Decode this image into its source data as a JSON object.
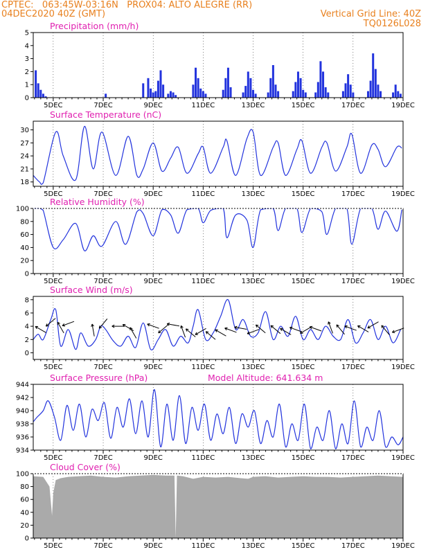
{
  "header": {
    "line1_left": "CPTEC:   063:45W-03:16N   PROX04: ALTO ALEGRE (RR)",
    "line2_left": "04DEC2020 40Z (GMT)",
    "line2_right": "Vertical Grid Line: 40Z",
    "line3_right": "TQ0126L028"
  },
  "colors": {
    "header": "#e8801e",
    "title": "#e020b0",
    "line": "#2233dd",
    "cloud": "#aaaaaa"
  },
  "chart_data": [
    {
      "type": "bar",
      "title": "Precipitation  (mm/h)",
      "ylim": [
        0,
        5
      ],
      "yticks": [
        "0",
        "1",
        "2",
        "3",
        "4",
        "5"
      ],
      "xticks": [
        "5DEC",
        "7DEC",
        "9DEC",
        "11DEC",
        "13DEC",
        "15DEC",
        "17DEC",
        "19DEC"
      ],
      "days": [
        4.2,
        19.0
      ],
      "x": [
        4.3,
        4.4,
        4.5,
        4.6,
        4.7,
        7.1,
        8.6,
        8.8,
        8.9,
        9.0,
        9.1,
        9.2,
        9.3,
        9.4,
        9.6,
        9.7,
        9.8,
        9.9,
        10.6,
        10.7,
        10.8,
        10.9,
        11.0,
        11.1,
        11.8,
        11.9,
        12.0,
        12.1,
        12.6,
        12.7,
        12.8,
        12.9,
        13.0,
        13.1,
        13.6,
        13.7,
        13.8,
        13.9,
        14.0,
        14.6,
        14.7,
        14.8,
        14.9,
        15.0,
        15.1,
        15.5,
        15.6,
        15.7,
        15.8,
        15.9,
        16.0,
        16.6,
        16.7,
        16.8,
        16.9,
        17.0,
        17.6,
        17.7,
        17.8,
        17.9,
        18.0,
        18.1,
        18.6,
        18.7,
        18.8,
        18.9
      ],
      "values": [
        2.1,
        1.1,
        0.6,
        0.3,
        0.1,
        0.3,
        1.1,
        1.5,
        0.7,
        0.4,
        0.5,
        1.3,
        2.1,
        1.0,
        0.3,
        0.5,
        0.4,
        0.2,
        1.0,
        2.3,
        1.5,
        0.7,
        0.5,
        0.3,
        0.6,
        1.5,
        2.3,
        0.8,
        0.4,
        0.9,
        2.0,
        1.5,
        0.6,
        0.3,
        0.4,
        1.5,
        2.5,
        1.0,
        0.5,
        0.5,
        1.2,
        2.0,
        1.5,
        0.6,
        0.4,
        0.4,
        1.2,
        2.8,
        2.0,
        0.8,
        0.4,
        0.5,
        1.1,
        1.8,
        1.0,
        0.4,
        0.5,
        1.3,
        3.4,
        2.2,
        1.0,
        0.5,
        0.4,
        1.0,
        0.5,
        0.3
      ]
    },
    {
      "type": "line",
      "title": "Surface Temperature (nC)",
      "ylim": [
        17,
        32
      ],
      "yticks": [
        "18",
        "21",
        "24",
        "27",
        "30"
      ],
      "xticks": [
        "5DEC",
        "7DEC",
        "9DEC",
        "11DEC",
        "13DEC",
        "15DEC",
        "17DEC",
        "19DEC"
      ],
      "days": [
        4.2,
        19.0
      ],
      "x": [
        4.2,
        4.45,
        4.6,
        5.1,
        5.4,
        5.9,
        6.25,
        6.6,
        6.95,
        7.5,
        8.0,
        8.35,
        8.6,
        9.0,
        9.35,
        9.7,
        10.0,
        10.35,
        10.8,
        11.0,
        11.3,
        11.8,
        11.95,
        12.3,
        12.75,
        13.0,
        13.3,
        13.8,
        14.0,
        14.3,
        14.75,
        14.95,
        15.3,
        15.75,
        15.95,
        16.3,
        16.75,
        16.95,
        17.3,
        17.75,
        18.0,
        18.3,
        18.75,
        18.95
      ],
      "values": [
        19.5,
        18.0,
        17.8,
        29.5,
        24.0,
        18.5,
        30.8,
        21.0,
        29.5,
        19.5,
        28.5,
        19.5,
        21.0,
        27.0,
        20.5,
        23.5,
        26.0,
        20.0,
        24.5,
        26.0,
        20.0,
        26.0,
        27.5,
        19.5,
        28.0,
        29.5,
        19.5,
        26.0,
        27.0,
        19.5,
        25.5,
        27.5,
        20.0,
        26.0,
        27.0,
        20.5,
        26.0,
        29.0,
        20.0,
        26.5,
        25.5,
        21.5,
        26.0,
        25.8
      ]
    },
    {
      "type": "line",
      "title": "Relative Humidity (%)",
      "ylim": [
        0,
        100
      ],
      "yticks": [
        "0",
        "20",
        "40",
        "60",
        "80",
        "100"
      ],
      "xticks": [
        "5DEC",
        "7DEC",
        "9DEC",
        "11DEC",
        "13DEC",
        "15DEC",
        "17DEC",
        "19DEC"
      ],
      "days": [
        4.2,
        19.0
      ],
      "x": [
        4.2,
        4.45,
        4.6,
        5.0,
        5.4,
        5.9,
        6.25,
        6.6,
        6.95,
        7.5,
        7.9,
        8.35,
        8.6,
        9.0,
        9.35,
        9.7,
        10.0,
        10.35,
        10.8,
        11.0,
        11.3,
        11.8,
        11.95,
        12.3,
        12.75,
        13.0,
        13.3,
        13.8,
        14.0,
        14.3,
        14.75,
        14.95,
        15.3,
        15.75,
        15.95,
        16.3,
        16.75,
        16.95,
        17.3,
        17.75,
        18.0,
        18.3,
        18.75,
        18.95
      ],
      "values": [
        100,
        100,
        97,
        40,
        52,
        77,
        35,
        58,
        42,
        80,
        45,
        95,
        92,
        58,
        98,
        90,
        62,
        98,
        100,
        78,
        97,
        100,
        55,
        90,
        82,
        40,
        98,
        100,
        66,
        100,
        100,
        63,
        100,
        95,
        60,
        100,
        100,
        45,
        100,
        100,
        68,
        96,
        65,
        98
      ]
    },
    {
      "type": "line",
      "title": "Surface Wind (m/s)",
      "ylim": [
        -1,
        8.5
      ],
      "yticks": [
        "0",
        "2",
        "4",
        "6",
        "8"
      ],
      "xticks": [
        "5DEC",
        "7DEC",
        "9DEC",
        "11DEC",
        "13DEC",
        "15DEC",
        "17DEC",
        "19DEC"
      ],
      "days": [
        4.2,
        19.0
      ],
      "x": [
        4.2,
        4.4,
        4.6,
        4.9,
        5.1,
        5.3,
        5.6,
        5.9,
        6.1,
        6.4,
        6.7,
        6.9,
        7.1,
        7.4,
        7.7,
        8.0,
        8.3,
        8.6,
        8.9,
        9.2,
        9.5,
        9.8,
        10.1,
        10.4,
        10.6,
        10.8,
        11.1,
        11.4,
        11.7,
        12.0,
        12.3,
        12.6,
        12.9,
        13.2,
        13.5,
        13.8,
        14.1,
        14.4,
        14.7,
        15.0,
        15.3,
        15.6,
        15.9,
        16.2,
        16.5,
        16.8,
        17.1,
        17.4,
        17.7,
        18.0,
        18.3,
        18.6,
        18.9
      ],
      "values": [
        2.0,
        2.8,
        2.0,
        5.0,
        6.5,
        1.0,
        3.5,
        0.5,
        3.0,
        1.0,
        2.0,
        4.0,
        3.5,
        1.8,
        1.0,
        2.5,
        0.8,
        4.5,
        0.5,
        2.0,
        3.5,
        1.0,
        2.5,
        1.5,
        4.0,
        6.5,
        2.0,
        3.0,
        5.5,
        8.0,
        3.5,
        5.0,
        2.5,
        3.0,
        6.2,
        2.0,
        4.0,
        2.5,
        5.5,
        2.0,
        3.5,
        2.0,
        4.0,
        2.5,
        2.0,
        5.0,
        1.5,
        3.0,
        5.0,
        2.0,
        4.0,
        1.5,
        3.5
      ],
      "arrows": [
        [
          4.5,
          3.5,
          30
        ],
        [
          4.9,
          4.6,
          -40
        ],
        [
          5.3,
          3.8,
          60
        ],
        [
          5.6,
          4.4,
          -20
        ],
        [
          6.6,
          3.4,
          80
        ],
        [
          7.0,
          4.4,
          -50
        ],
        [
          7.6,
          4.0,
          0
        ],
        [
          8.0,
          3.8,
          30
        ],
        [
          8.2,
          3.0,
          60
        ],
        [
          9.0,
          4.0,
          20
        ],
        [
          9.4,
          3.6,
          -40
        ],
        [
          9.8,
          4.2,
          10
        ],
        [
          10.2,
          3.2,
          70
        ],
        [
          10.5,
          3.0,
          40
        ],
        [
          10.9,
          3.2,
          -30
        ],
        [
          11.3,
          2.6,
          40
        ],
        [
          11.7,
          3.0,
          30
        ],
        [
          12.1,
          3.4,
          20
        ],
        [
          12.5,
          3.7,
          10
        ],
        [
          13.0,
          3.2,
          -20
        ],
        [
          13.3,
          3.6,
          40
        ],
        [
          13.9,
          3.5,
          40
        ],
        [
          14.3,
          3.2,
          30
        ],
        [
          14.7,
          3.5,
          20
        ],
        [
          15.1,
          3.4,
          -30
        ],
        [
          15.5,
          3.6,
          20
        ],
        [
          16.1,
          3.8,
          70
        ],
        [
          16.5,
          3.5,
          50
        ],
        [
          16.9,
          3.7,
          20
        ],
        [
          17.4,
          3.6,
          30
        ],
        [
          17.8,
          4.2,
          -30
        ],
        [
          18.3,
          3.4,
          50
        ],
        [
          18.8,
          3.4,
          -20
        ]
      ]
    },
    {
      "type": "line",
      "title": "Surface Pressure (hPa)",
      "annotation": "Model Altitude:  641.634  m",
      "ylim": [
        934,
        944
      ],
      "yticks": [
        "934",
        "936",
        "938",
        "940",
        "942",
        "944"
      ],
      "xticks": [
        "5DEC",
        "7DEC",
        "9DEC",
        "11DEC",
        "13DEC",
        "15DEC",
        "17DEC",
        "19DEC"
      ],
      "days": [
        4.2,
        19.0
      ],
      "x": [
        4.2,
        4.35,
        4.6,
        4.8,
        5.05,
        5.3,
        5.55,
        5.8,
        6.05,
        6.3,
        6.55,
        6.8,
        7.05,
        7.3,
        7.55,
        7.8,
        8.05,
        8.3,
        8.55,
        8.8,
        9.05,
        9.3,
        9.55,
        9.8,
        10.05,
        10.3,
        10.55,
        10.8,
        11.05,
        11.3,
        11.55,
        11.8,
        12.05,
        12.3,
        12.55,
        12.8,
        13.05,
        13.3,
        13.55,
        13.8,
        14.05,
        14.3,
        14.55,
        14.8,
        15.05,
        15.3,
        15.55,
        15.8,
        16.05,
        16.3,
        16.55,
        16.8,
        17.05,
        17.3,
        17.55,
        17.8,
        18.05,
        18.3,
        18.55,
        18.8,
        19.0
      ],
      "values": [
        938.3,
        939.0,
        940.0,
        941.5,
        939.0,
        935.5,
        940.8,
        937.0,
        941.0,
        936.0,
        940.2,
        938.5,
        941.2,
        935.8,
        940.5,
        937.5,
        941.8,
        936.5,
        941.5,
        936.0,
        943.2,
        934.5,
        941.0,
        935.5,
        942.3,
        935.0,
        940.5,
        937.0,
        941.0,
        935.5,
        939.5,
        936.5,
        940.5,
        935.0,
        939.5,
        937.5,
        940.0,
        935.0,
        938.5,
        936.0,
        941.0,
        934.5,
        938.0,
        935.5,
        941.0,
        934.2,
        937.5,
        935.5,
        940.0,
        934.2,
        938.0,
        935.0,
        941.5,
        934.5,
        937.5,
        935.5,
        940.0,
        934.5,
        936.0,
        934.8,
        936.0
      ]
    },
    {
      "type": "area",
      "title": "Cloud Cover (%)",
      "ylim": [
        0,
        100
      ],
      "yticks": [
        "0",
        "20",
        "40",
        "60",
        "80",
        "100"
      ],
      "xticks": [
        "5DEC",
        "7DEC",
        "9DEC",
        "11DEC",
        "13DEC",
        "15DEC",
        "17DEC",
        "19DEC"
      ],
      "days": [
        4.2,
        19.0
      ],
      "x": [
        4.2,
        4.6,
        4.85,
        4.95,
        5.0,
        5.1,
        5.3,
        5.6,
        6.0,
        6.5,
        7.0,
        7.5,
        8.0,
        8.5,
        9.0,
        9.5,
        9.85,
        9.9,
        9.95,
        10.2,
        10.6,
        11.0,
        11.5,
        12.0,
        12.5,
        12.8,
        13.0,
        13.5,
        14.0,
        14.5,
        15.0,
        15.5,
        16.0,
        16.5,
        17.0,
        17.5,
        18.0,
        18.5,
        19.0
      ],
      "values": [
        96,
        95,
        80,
        35,
        70,
        90,
        93,
        95,
        96,
        97,
        95,
        94,
        96,
        97,
        98,
        97,
        97,
        0,
        97,
        96,
        92,
        95,
        94,
        95,
        93,
        92,
        95,
        96,
        94,
        95,
        96,
        95,
        95,
        94,
        95,
        96,
        97,
        96,
        95
      ]
    }
  ]
}
